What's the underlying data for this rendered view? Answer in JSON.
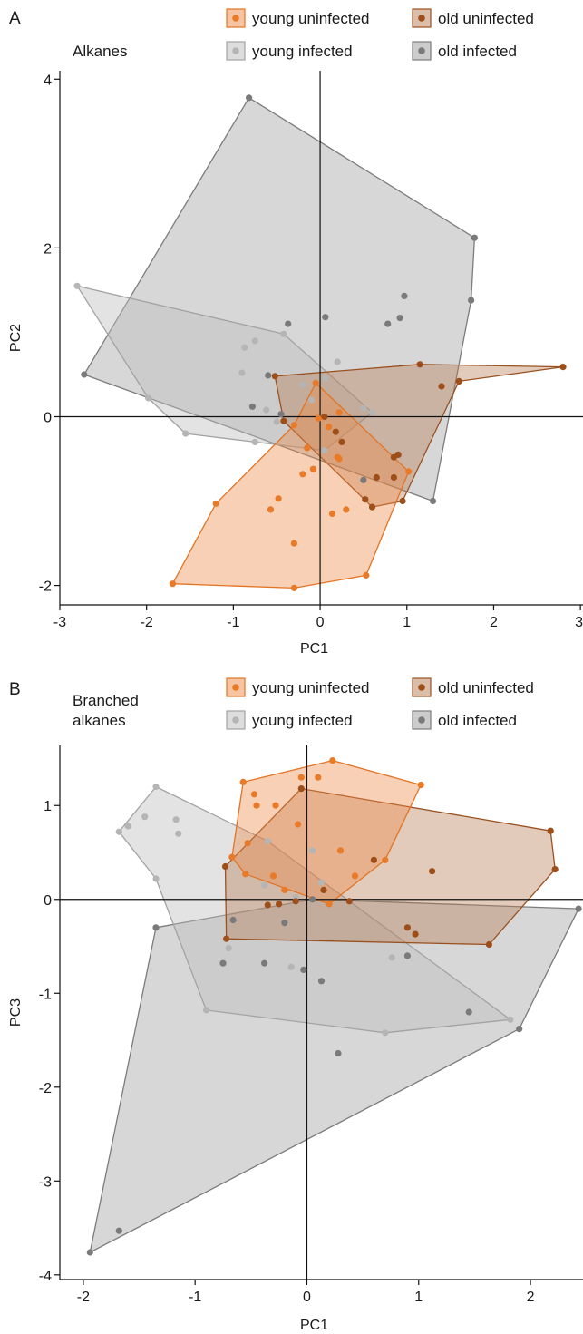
{
  "chart_data": [
    {
      "panel": "A",
      "type": "scatter",
      "title": "Alkanes",
      "xlabel": "PC1",
      "ylabel": "PC2",
      "xlim": [
        -3,
        3
      ],
      "ylim": [
        -2.2,
        4.1
      ],
      "xticks": [
        "-3",
        "-2",
        "-1",
        "0",
        "1",
        "2",
        "3"
      ],
      "yticks": [
        "-2",
        "0",
        "2",
        "4"
      ],
      "legend": [
        {
          "key": "yu",
          "label": "young uninfected"
        },
        {
          "key": "ou",
          "label": "old uninfected"
        },
        {
          "key": "yi",
          "label": "young infected"
        },
        {
          "key": "oi",
          "label": "old infected"
        }
      ],
      "series": [
        {
          "key": "oi",
          "name": "old infected",
          "hull": [
            [
              -0.82,
              3.78
            ],
            [
              1.78,
              2.12
            ],
            [
              1.74,
              1.38
            ],
            [
              1.3,
              -1.0
            ],
            [
              -2.72,
              0.5
            ]
          ],
          "points": [
            [
              -0.82,
              3.78
            ],
            [
              1.78,
              2.12
            ],
            [
              1.74,
              1.38
            ],
            [
              1.3,
              -1.0
            ],
            [
              -2.72,
              0.5
            ],
            [
              0.97,
              1.43
            ],
            [
              0.92,
              1.17
            ],
            [
              0.78,
              1.1
            ],
            [
              0.06,
              1.18
            ],
            [
              -0.37,
              1.1
            ],
            [
              -0.6,
              0.49
            ],
            [
              -0.45,
              0.03
            ],
            [
              -0.78,
              0.12
            ],
            [
              0.5,
              -0.75
            ]
          ]
        },
        {
          "key": "yi",
          "name": "young infected",
          "hull": [
            [
              -2.8,
              1.55
            ],
            [
              -0.42,
              0.98
            ],
            [
              0.6,
              0.05
            ],
            [
              0.05,
              -0.4
            ],
            [
              -0.75,
              -0.3
            ],
            [
              -1.55,
              -0.2
            ],
            [
              -1.98,
              0.22
            ]
          ],
          "points": [
            [
              -2.8,
              1.55
            ],
            [
              -0.42,
              0.98
            ],
            [
              0.6,
              0.05
            ],
            [
              0.05,
              -0.4
            ],
            [
              -0.75,
              -0.3
            ],
            [
              -1.55,
              -0.2
            ],
            [
              -1.98,
              0.22
            ],
            [
              -0.75,
              0.9
            ],
            [
              -0.87,
              0.82
            ],
            [
              -0.9,
              0.52
            ],
            [
              -0.2,
              0.38
            ],
            [
              0.06,
              0.45
            ],
            [
              0.2,
              0.65
            ],
            [
              -0.62,
              0.08
            ],
            [
              -0.5,
              -0.06
            ],
            [
              -0.1,
              0.2
            ],
            [
              0.5,
              0.1
            ]
          ]
        },
        {
          "key": "ou",
          "name": "old uninfected",
          "hull": [
            [
              -0.52,
              0.48
            ],
            [
              1.15,
              0.62
            ],
            [
              2.8,
              0.59
            ],
            [
              1.6,
              0.42
            ],
            [
              0.95,
              -1.0
            ],
            [
              0.6,
              -1.07
            ],
            [
              -0.42,
              -0.05
            ]
          ],
          "points": [
            [
              -0.52,
              0.48
            ],
            [
              1.15,
              0.62
            ],
            [
              2.8,
              0.59
            ],
            [
              1.6,
              0.42
            ],
            [
              1.4,
              0.36
            ],
            [
              0.95,
              -1.0
            ],
            [
              0.6,
              -1.07
            ],
            [
              0.52,
              -0.98
            ],
            [
              -0.42,
              -0.05
            ],
            [
              0.9,
              -0.45
            ],
            [
              0.85,
              -0.48
            ],
            [
              0.85,
              -0.72
            ],
            [
              0.65,
              -0.72
            ],
            [
              0.25,
              -0.3
            ],
            [
              0.18,
              -0.18
            ],
            [
              0.05,
              0.0
            ]
          ]
        },
        {
          "key": "yu",
          "name": "young uninfected",
          "hull": [
            [
              -1.7,
              -1.98
            ],
            [
              -0.3,
              -2.03
            ],
            [
              0.53,
              -1.88
            ],
            [
              1.02,
              -0.65
            ],
            [
              -0.05,
              0.4
            ],
            [
              -0.3,
              -0.1
            ],
            [
              -1.2,
              -1.03
            ]
          ],
          "points": [
            [
              -1.7,
              -1.98
            ],
            [
              -0.3,
              -2.03
            ],
            [
              0.53,
              -1.88
            ],
            [
              1.02,
              -0.65
            ],
            [
              -0.05,
              0.4
            ],
            [
              -0.3,
              -0.1
            ],
            [
              -1.2,
              -1.03
            ],
            [
              -0.3,
              -1.5
            ],
            [
              -0.57,
              -1.1
            ],
            [
              -0.48,
              -0.97
            ],
            [
              0.14,
              -1.15
            ],
            [
              0.3,
              -1.1
            ],
            [
              -0.2,
              -0.68
            ],
            [
              -0.08,
              -0.62
            ],
            [
              0.2,
              -0.48
            ],
            [
              0.22,
              -0.5
            ],
            [
              -0.15,
              -0.37
            ],
            [
              -0.02,
              -0.02
            ],
            [
              0.1,
              -0.12
            ],
            [
              0.22,
              0.05
            ]
          ]
        }
      ]
    },
    {
      "panel": "B",
      "type": "scatter",
      "title": "Branched\nalkanes",
      "xlabel": "PC1",
      "ylabel": "PC3",
      "xlim": [
        -2.2,
        2.5
      ],
      "ylim": [
        -4.05,
        1.65
      ],
      "xticks": [
        "-2",
        "-1",
        "0",
        "1",
        "2"
      ],
      "yticks": [
        "-4",
        "-3",
        "-2",
        "-1",
        "0",
        "1"
      ],
      "legend": [
        {
          "key": "yu",
          "label": "young uninfected"
        },
        {
          "key": "ou",
          "label": "old uninfected"
        },
        {
          "key": "yi",
          "label": "young infected"
        },
        {
          "key": "oi",
          "label": "old infected"
        }
      ],
      "series": [
        {
          "key": "oi",
          "name": "old infected",
          "hull": [
            [
              -1.35,
              -0.3
            ],
            [
              0.05,
              0.0
            ],
            [
              2.43,
              -0.1
            ],
            [
              1.9,
              -1.38
            ],
            [
              -1.94,
              -3.76
            ]
          ],
          "points": [
            [
              -1.35,
              -0.3
            ],
            [
              0.05,
              0.0
            ],
            [
              2.43,
              -0.1
            ],
            [
              1.9,
              -1.38
            ],
            [
              -1.94,
              -3.76
            ],
            [
              -1.68,
              -3.53
            ],
            [
              -0.75,
              -0.68
            ],
            [
              -0.38,
              -0.68
            ],
            [
              -0.03,
              -0.75
            ],
            [
              0.13,
              -0.87
            ],
            [
              0.28,
              -1.64
            ],
            [
              1.45,
              -1.2
            ],
            [
              0.9,
              -0.6
            ],
            [
              -0.66,
              -0.22
            ],
            [
              -0.2,
              -0.25
            ]
          ]
        },
        {
          "key": "yi",
          "name": "young infected",
          "hull": [
            [
              -1.35,
              1.2
            ],
            [
              -0.35,
              0.62
            ],
            [
              1.82,
              -1.28
            ],
            [
              0.7,
              -1.42
            ],
            [
              -0.9,
              -1.18
            ],
            [
              -1.35,
              0.22
            ],
            [
              -1.68,
              0.72
            ]
          ],
          "points": [
            [
              -1.35,
              1.2
            ],
            [
              -0.35,
              0.62
            ],
            [
              1.82,
              -1.28
            ],
            [
              0.7,
              -1.42
            ],
            [
              -0.9,
              -1.18
            ],
            [
              -1.35,
              0.22
            ],
            [
              -1.68,
              0.72
            ],
            [
              -1.6,
              0.78
            ],
            [
              -1.45,
              0.88
            ],
            [
              -1.17,
              0.85
            ],
            [
              -1.15,
              0.7
            ],
            [
              0.05,
              0.52
            ],
            [
              0.13,
              0.18
            ],
            [
              -0.38,
              0.15
            ],
            [
              -0.7,
              -0.52
            ],
            [
              -0.14,
              -0.72
            ],
            [
              0.76,
              -0.62
            ],
            [
              -0.1,
              0.02
            ]
          ]
        },
        {
          "key": "ou",
          "name": "old uninfected",
          "hull": [
            [
              -0.05,
              1.18
            ],
            [
              2.18,
              0.73
            ],
            [
              2.22,
              0.32
            ],
            [
              1.63,
              -0.48
            ],
            [
              -0.72,
              -0.42
            ],
            [
              -0.73,
              0.35
            ]
          ],
          "points": [
            [
              -0.05,
              1.18
            ],
            [
              2.18,
              0.73
            ],
            [
              2.22,
              0.32
            ],
            [
              1.63,
              -0.48
            ],
            [
              -0.72,
              -0.42
            ],
            [
              -0.73,
              0.35
            ],
            [
              0.6,
              0.42
            ],
            [
              1.12,
              0.3
            ],
            [
              0.38,
              -0.02
            ],
            [
              0.9,
              -0.3
            ],
            [
              0.97,
              -0.37
            ],
            [
              -0.25,
              -0.05
            ],
            [
              -0.1,
              -0.02
            ],
            [
              -0.35,
              -0.06
            ],
            [
              0.15,
              0.1
            ]
          ]
        },
        {
          "key": "yu",
          "name": "young uninfected",
          "hull": [
            [
              -0.57,
              1.25
            ],
            [
              0.23,
              1.48
            ],
            [
              1.02,
              1.22
            ],
            [
              0.7,
              0.42
            ],
            [
              0.2,
              -0.05
            ],
            [
              -0.55,
              0.27
            ],
            [
              -0.67,
              0.45
            ]
          ],
          "points": [
            [
              -0.57,
              1.25
            ],
            [
              0.23,
              1.48
            ],
            [
              1.02,
              1.22
            ],
            [
              0.7,
              0.42
            ],
            [
              0.2,
              -0.05
            ],
            [
              -0.55,
              0.27
            ],
            [
              -0.67,
              0.45
            ],
            [
              -0.47,
              1.12
            ],
            [
              -0.45,
              1.0
            ],
            [
              -0.28,
              1.0
            ],
            [
              -0.05,
              1.3
            ],
            [
              0.1,
              1.3
            ],
            [
              -0.08,
              0.8
            ],
            [
              0.3,
              0.52
            ],
            [
              -0.53,
              0.6
            ],
            [
              0.43,
              0.25
            ],
            [
              -0.2,
              0.1
            ],
            [
              -0.3,
              0.25
            ]
          ]
        }
      ]
    }
  ],
  "styles": {
    "yu": {
      "fill": "#ee8a45",
      "fillOpacity": 0.4,
      "stroke": "#e27424",
      "point": "#e87a28"
    },
    "ou": {
      "fill": "#b77e55",
      "fillOpacity": 0.4,
      "stroke": "#9a5120",
      "point": "#9d4e19"
    },
    "yi": {
      "fill": "#bdbdbd",
      "fillOpacity": 0.42,
      "stroke": "#a3a3a3",
      "point": "#b5b5b5"
    },
    "oi": {
      "fill": "#9a9a9a",
      "fillOpacity": 0.4,
      "stroke": "#7c7c7c",
      "point": "#7a7a7a"
    }
  }
}
